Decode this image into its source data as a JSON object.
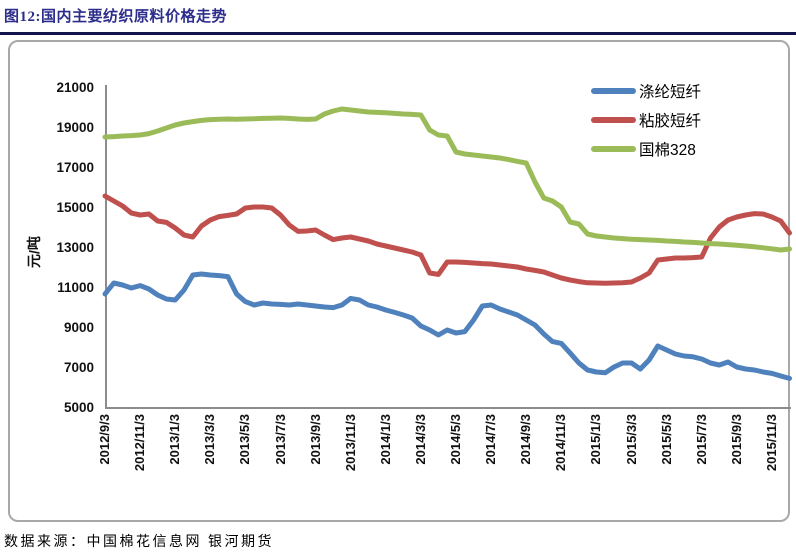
{
  "page": {
    "title": "图12:国内主要纺织原料价格走势",
    "source_note": "数据来源：中国棉花信息网 银河期货"
  },
  "colors": {
    "title_text": "#2D2D8C",
    "title_rule": "#14144E",
    "axis_line": "#8C8C8C",
    "tick_text": "#111111",
    "box_border": "#A8A8A8"
  },
  "chart_data": {
    "type": "line",
    "grid": "off",
    "legend_position": "top-right-inside",
    "y_axis": {
      "title": "元/吨",
      "min": 5000,
      "max": 21000,
      "tick_step": 2000,
      "tick_labels": [
        "21000",
        "19000",
        "17000",
        "15000",
        "13000",
        "11000",
        "9000",
        "7000",
        "5000"
      ]
    },
    "x_axis": {
      "tick_labels": [
        "2012/9/3",
        "2012/11/3",
        "2013/1/3",
        "2013/3/3",
        "2013/5/3",
        "2013/7/3",
        "2013/9/3",
        "2013/11/3",
        "2014/1/3",
        "2014/3/3",
        "2014/5/3",
        "2014/7/3",
        "2014/9/3",
        "2014/11/3",
        "2015/1/3",
        "2015/3/3",
        "2015/5/3",
        "2015/7/3",
        "2015/9/3",
        "2015/11/3"
      ],
      "start": "2012/9/3",
      "end": "2015/12/1",
      "months_per_point": 0.5
    },
    "series": [
      {
        "name": "涤纶短纤",
        "color": "#4F81BD",
        "values": [
          10700,
          11250,
          11150,
          11000,
          11120,
          10950,
          10650,
          10450,
          10400,
          10900,
          11650,
          11700,
          11650,
          11620,
          11570,
          10700,
          10320,
          10150,
          10250,
          10200,
          10180,
          10150,
          10200,
          10150,
          10100,
          10050,
          10020,
          10150,
          10480,
          10400,
          10150,
          10050,
          9900,
          9780,
          9650,
          9500,
          9100,
          8900,
          8650,
          8900,
          8750,
          8820,
          9400,
          10100,
          10150,
          9950,
          9800,
          9650,
          9400,
          9150,
          8700,
          8320,
          8230,
          7750,
          7250,
          6900,
          6800,
          6760,
          7050,
          7250,
          7250,
          6950,
          7400,
          8100,
          7900,
          7700,
          7600,
          7560,
          7450,
          7250,
          7150,
          7300,
          7050,
          6950,
          6900,
          6800,
          6730,
          6600,
          6480
        ]
      },
      {
        "name": "粘胶短纤",
        "color": "#C0504D",
        "values": [
          15600,
          15350,
          15100,
          14750,
          14650,
          14700,
          14350,
          14280,
          14000,
          13650,
          13550,
          14100,
          14400,
          14570,
          14630,
          14700,
          15000,
          15050,
          15050,
          15000,
          14650,
          14150,
          13830,
          13850,
          13900,
          13650,
          13420,
          13500,
          13550,
          13450,
          13350,
          13200,
          13100,
          13000,
          12900,
          12800,
          12650,
          11750,
          11680,
          12300,
          12300,
          12280,
          12250,
          12220,
          12200,
          12150,
          12100,
          12050,
          11950,
          11880,
          11800,
          11650,
          11500,
          11400,
          11320,
          11260,
          11250,
          11240,
          11250,
          11260,
          11300,
          11500,
          11750,
          12400,
          12450,
          12500,
          12500,
          12520,
          12550,
          13500,
          14050,
          14400,
          14550,
          14650,
          14720,
          14700,
          14550,
          14350,
          13750
        ]
      },
      {
        "name": "国棉328",
        "color": "#9BBB59",
        "values": [
          18550,
          18570,
          18600,
          18620,
          18650,
          18720,
          18850,
          19000,
          19150,
          19250,
          19320,
          19380,
          19420,
          19440,
          19450,
          19440,
          19450,
          19460,
          19480,
          19490,
          19500,
          19480,
          19450,
          19430,
          19450,
          19700,
          19850,
          19950,
          19900,
          19850,
          19800,
          19780,
          19760,
          19730,
          19700,
          19680,
          19650,
          18900,
          18650,
          18600,
          17800,
          17700,
          17650,
          17600,
          17550,
          17500,
          17420,
          17330,
          17250,
          16300,
          15500,
          15350,
          15050,
          14300,
          14200,
          13700,
          13600,
          13550,
          13500,
          13470,
          13440,
          13420,
          13400,
          13380,
          13350,
          13330,
          13300,
          13280,
          13250,
          13220,
          13200,
          13170,
          13140,
          13100,
          13060,
          13010,
          12960,
          12900,
          12950
        ]
      }
    ]
  }
}
